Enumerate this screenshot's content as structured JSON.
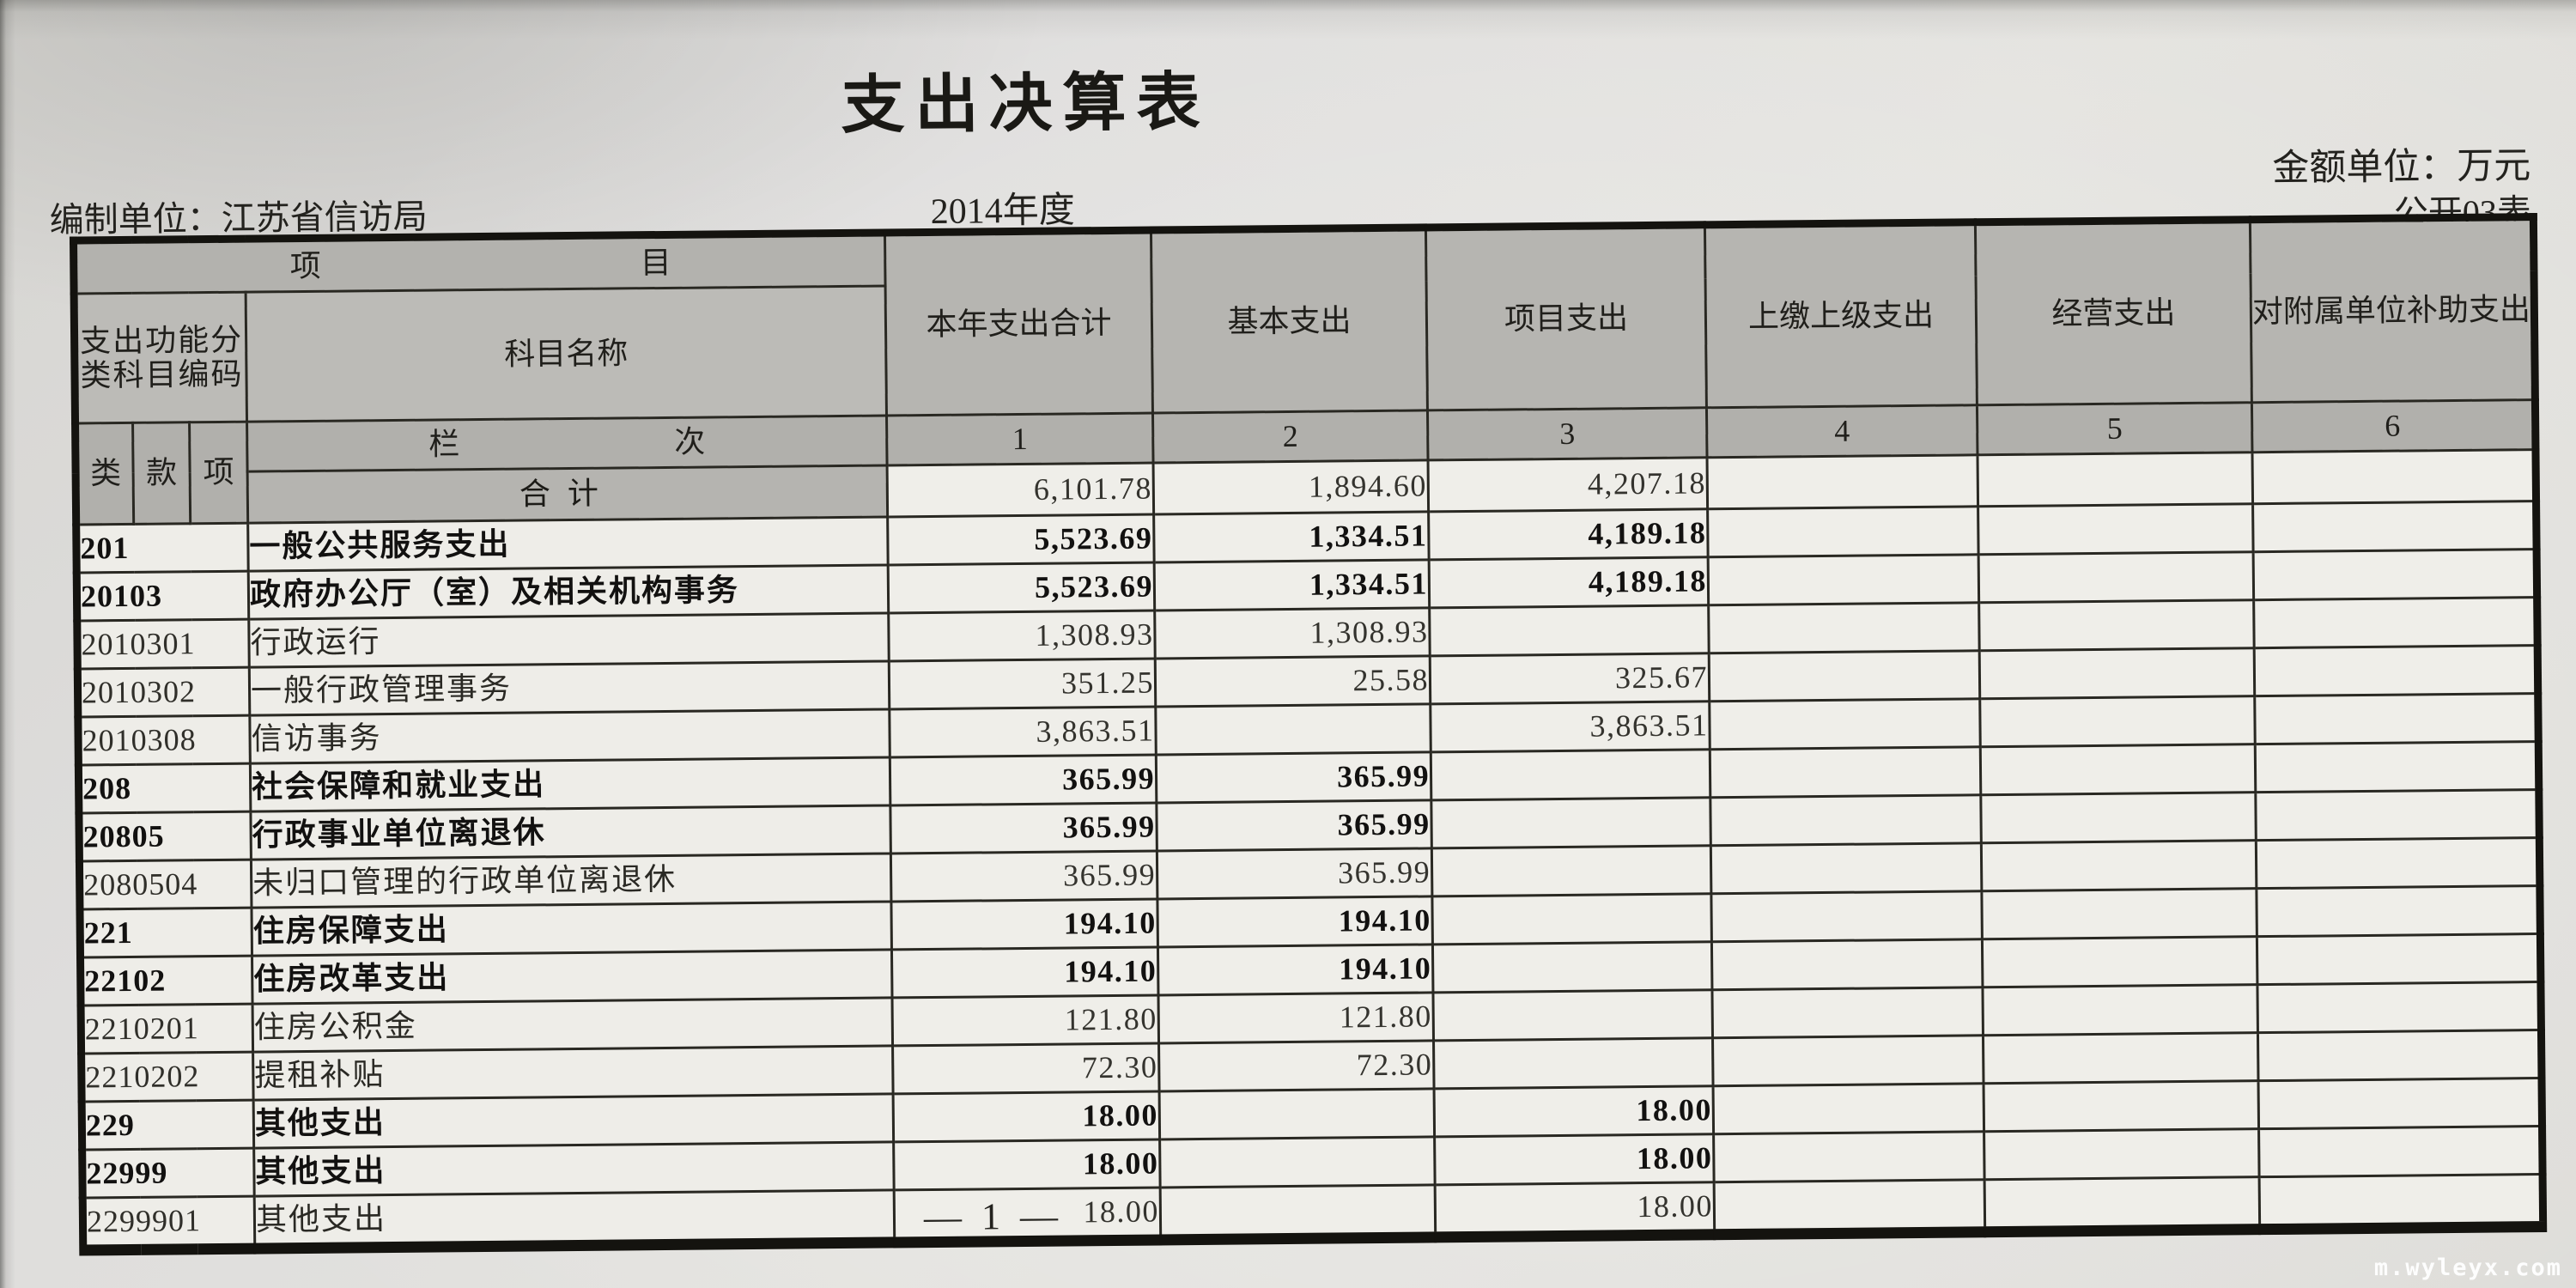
{
  "page": {
    "title": "支出决算表",
    "amount_unit": "金额单位：万元",
    "sheet_code": "公开03表",
    "org_unit": "编制单位：江苏省信访局",
    "fiscal_year": "2014年度",
    "page_number": "— 1 —",
    "watermark": "m.wyleyx.com"
  },
  "colors": {
    "paper": "#e0dfdb",
    "header_fill": "#b6b5b1",
    "cell_fill": "#efeee9",
    "grid_line": "#292822",
    "text": "#1c1b17"
  },
  "table": {
    "header": {
      "project": "项目",
      "code_header": "支出功能分类科目编码",
      "subject_name": "科目名称",
      "col_total": "本年支出合计",
      "col_basic": "基本支出",
      "col_project": "项目支出",
      "col_upper": "上缴上级支出",
      "col_operating": "经营支出",
      "col_subsidy": "对附属单位补助支出",
      "code_sub": [
        "类",
        "款",
        "项"
      ],
      "lanci": "栏次",
      "col_numbers": [
        "1",
        "2",
        "3",
        "4",
        "5",
        "6"
      ]
    },
    "total_row": {
      "label": "合计",
      "values": [
        "6,101.78",
        "1,894.60",
        "4,207.18",
        "",
        "",
        ""
      ]
    },
    "rows": [
      {
        "code": "201",
        "name": "一般公共服务支出",
        "bold": true,
        "indent": false,
        "values": [
          "5,523.69",
          "1,334.51",
          "4,189.18",
          "",
          "",
          ""
        ]
      },
      {
        "code": "20103",
        "name": "政府办公厅（室）及相关机构事务",
        "bold": true,
        "indent": false,
        "values": [
          "5,523.69",
          "1,334.51",
          "4,189.18",
          "",
          "",
          ""
        ]
      },
      {
        "code": "2010301",
        "name": "行政运行",
        "bold": false,
        "indent": true,
        "values": [
          "1,308.93",
          "1,308.93",
          "",
          "",
          "",
          ""
        ]
      },
      {
        "code": "2010302",
        "name": "一般行政管理事务",
        "bold": false,
        "indent": true,
        "values": [
          "351.25",
          "25.58",
          "325.67",
          "",
          "",
          ""
        ]
      },
      {
        "code": "2010308",
        "name": "信访事务",
        "bold": false,
        "indent": true,
        "values": [
          "3,863.51",
          "",
          "3,863.51",
          "",
          "",
          ""
        ]
      },
      {
        "code": "208",
        "name": "社会保障和就业支出",
        "bold": true,
        "indent": false,
        "values": [
          "365.99",
          "365.99",
          "",
          "",
          "",
          ""
        ]
      },
      {
        "code": "20805",
        "name": "行政事业单位离退休",
        "bold": true,
        "indent": false,
        "values": [
          "365.99",
          "365.99",
          "",
          "",
          "",
          ""
        ]
      },
      {
        "code": "2080504",
        "name": "未归口管理的行政单位离退休",
        "bold": false,
        "indent": true,
        "values": [
          "365.99",
          "365.99",
          "",
          "",
          "",
          ""
        ]
      },
      {
        "code": "221",
        "name": "住房保障支出",
        "bold": true,
        "indent": false,
        "values": [
          "194.10",
          "194.10",
          "",
          "",
          "",
          ""
        ]
      },
      {
        "code": "22102",
        "name": "住房改革支出",
        "bold": true,
        "indent": false,
        "values": [
          "194.10",
          "194.10",
          "",
          "",
          "",
          ""
        ]
      },
      {
        "code": "2210201",
        "name": "住房公积金",
        "bold": false,
        "indent": true,
        "values": [
          "121.80",
          "121.80",
          "",
          "",
          "",
          ""
        ]
      },
      {
        "code": "2210202",
        "name": "提租补贴",
        "bold": false,
        "indent": true,
        "values": [
          "72.30",
          "72.30",
          "",
          "",
          "",
          ""
        ]
      },
      {
        "code": "229",
        "name": "其他支出",
        "bold": true,
        "indent": false,
        "values": [
          "18.00",
          "",
          "18.00",
          "",
          "",
          ""
        ]
      },
      {
        "code": "22999",
        "name": "其他支出",
        "bold": true,
        "indent": false,
        "values": [
          "18.00",
          "",
          "18.00",
          "",
          "",
          ""
        ]
      },
      {
        "code": "2299901",
        "name": "其他支出",
        "bold": false,
        "indent": true,
        "values": [
          "18.00",
          "",
          "18.00",
          "",
          "",
          ""
        ]
      }
    ]
  }
}
